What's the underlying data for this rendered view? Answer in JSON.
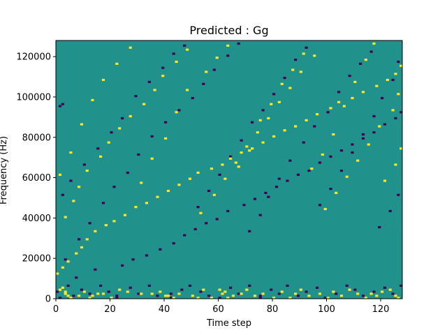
{
  "chart_data": {
    "type": "heatmap",
    "title": "Predicted : Gg",
    "xlabel": "Time step",
    "ylabel": "Frequency (Hz)",
    "xlim": [
      0,
      128
    ],
    "ylim": [
      0,
      128000
    ],
    "x_ticks": [
      0,
      20,
      40,
      60,
      80,
      100,
      120
    ],
    "y_ticks": [
      0,
      20000,
      40000,
      60000,
      80000,
      100000,
      120000
    ],
    "rows": 128,
    "background_value": 0,
    "value_levels": [
      -1,
      0,
      1
    ],
    "colors": {
      "-1": "#440154",
      "0": "#21918c",
      "1": "#fde725"
    },
    "cells_high": [
      [
        1,
        4
      ],
      [
        2,
        5
      ],
      [
        3,
        2
      ],
      [
        3,
        3
      ],
      [
        4,
        1
      ],
      [
        5,
        0
      ],
      [
        8,
        1
      ],
      [
        10,
        3
      ],
      [
        12,
        0
      ],
      [
        13,
        1
      ],
      [
        15,
        2
      ],
      [
        17,
        2
      ],
      [
        20,
        0
      ],
      [
        23,
        4
      ],
      [
        26,
        3
      ],
      [
        31,
        2
      ],
      [
        35,
        2
      ],
      [
        38,
        3
      ],
      [
        40,
        1
      ],
      [
        41,
        1
      ],
      [
        43,
        0
      ],
      [
        45,
        2
      ],
      [
        50,
        1
      ],
      [
        52,
        0
      ],
      [
        54,
        4
      ],
      [
        57,
        0
      ],
      [
        60,
        4
      ],
      [
        61,
        2
      ],
      [
        62,
        3
      ],
      [
        63,
        0
      ],
      [
        65,
        1
      ],
      [
        68,
        2
      ],
      [
        70,
        4
      ],
      [
        73,
        1
      ],
      [
        76,
        2
      ],
      [
        80,
        0
      ],
      [
        83,
        3
      ],
      [
        86,
        0
      ],
      [
        88,
        2
      ],
      [
        90,
        4
      ],
      [
        93,
        1
      ],
      [
        97,
        2
      ],
      [
        100,
        0
      ],
      [
        102,
        3
      ],
      [
        105,
        1
      ],
      [
        108,
        4
      ],
      [
        111,
        2
      ],
      [
        114,
        0
      ],
      [
        116,
        2
      ],
      [
        118,
        1
      ],
      [
        120,
        3
      ],
      [
        123,
        4
      ],
      [
        125,
        1
      ],
      [
        126,
        0
      ],
      [
        0,
        12
      ],
      [
        2,
        15
      ],
      [
        4,
        18
      ],
      [
        7,
        22
      ],
      [
        9,
        25
      ],
      [
        11,
        29
      ],
      [
        14,
        33
      ],
      [
        18,
        36
      ],
      [
        21,
        38
      ],
      [
        25,
        41
      ],
      [
        29,
        45
      ],
      [
        33,
        47
      ],
      [
        37,
        50
      ],
      [
        41,
        53
      ],
      [
        45,
        56
      ],
      [
        49,
        59
      ],
      [
        52,
        62
      ],
      [
        57,
        64
      ],
      [
        61,
        66
      ],
      [
        64,
        69
      ],
      [
        68,
        72
      ],
      [
        72,
        74
      ],
      [
        76,
        77
      ],
      [
        80,
        80
      ],
      [
        84,
        83
      ],
      [
        88,
        85
      ],
      [
        92,
        88
      ],
      [
        96,
        91
      ],
      [
        101,
        94
      ],
      [
        104,
        97
      ],
      [
        109,
        99
      ],
      [
        113,
        102
      ],
      [
        118,
        105
      ],
      [
        122,
        108
      ],
      [
        125,
        111
      ],
      [
        127,
        115
      ],
      [
        3,
        40
      ],
      [
        6,
        48
      ],
      [
        8,
        55
      ],
      [
        11,
        63
      ],
      [
        16,
        70
      ],
      [
        19,
        77
      ],
      [
        23,
        84
      ],
      [
        27,
        90
      ],
      [
        32,
        96
      ],
      [
        36,
        103
      ],
      [
        39,
        110
      ],
      [
        44,
        117
      ],
      [
        48,
        123
      ],
      [
        53,
        42
      ],
      [
        58,
        51
      ],
      [
        62,
        59
      ],
      [
        66,
        67
      ],
      [
        70,
        75
      ],
      [
        74,
        82
      ],
      [
        78,
        89
      ],
      [
        82,
        97
      ],
      [
        86,
        104
      ],
      [
        90,
        112
      ],
      [
        95,
        120
      ],
      [
        99,
        44
      ],
      [
        103,
        52
      ],
      [
        107,
        60
      ],
      [
        111,
        68
      ],
      [
        115,
        76
      ],
      [
        119,
        85
      ],
      [
        124,
        93
      ],
      [
        126,
        101
      ],
      [
        1,
        61
      ],
      [
        5,
        72
      ],
      [
        9,
        86
      ],
      [
        13,
        98
      ],
      [
        17,
        108
      ],
      [
        22,
        116
      ],
      [
        27,
        124
      ],
      [
        31,
        57
      ],
      [
        35,
        69
      ],
      [
        40,
        79
      ],
      [
        44,
        92
      ],
      [
        48,
        103
      ],
      [
        55,
        112
      ],
      [
        59,
        119
      ],
      [
        63,
        125
      ],
      [
        67,
        65
      ],
      [
        71,
        73
      ],
      [
        75,
        88
      ],
      [
        79,
        96
      ],
      [
        83,
        106
      ],
      [
        87,
        113
      ],
      [
        91,
        121
      ],
      [
        94,
        64
      ],
      [
        98,
        71
      ],
      [
        102,
        81
      ],
      [
        106,
        95
      ],
      [
        110,
        107
      ],
      [
        114,
        118
      ],
      [
        117,
        126
      ],
      [
        121,
        58
      ],
      [
        125,
        66
      ],
      [
        127,
        74
      ]
    ],
    "cells_low": [
      [
        0,
        3
      ],
      [
        1,
        0
      ],
      [
        4,
        6
      ],
      [
        6,
        1
      ],
      [
        9,
        4
      ],
      [
        12,
        2
      ],
      [
        16,
        6
      ],
      [
        19,
        3
      ],
      [
        22,
        0
      ],
      [
        22,
        1
      ],
      [
        27,
        5
      ],
      [
        30,
        2
      ],
      [
        34,
        6
      ],
      [
        37,
        1
      ],
      [
        42,
        0
      ],
      [
        42,
        2
      ],
      [
        46,
        4
      ],
      [
        49,
        6
      ],
      [
        53,
        3
      ],
      [
        56,
        1
      ],
      [
        60,
        0
      ],
      [
        64,
        5
      ],
      [
        67,
        2
      ],
      [
        71,
        6
      ],
      [
        75,
        0
      ],
      [
        75,
        1
      ],
      [
        79,
        4
      ],
      [
        82,
        2
      ],
      [
        85,
        6
      ],
      [
        89,
        1
      ],
      [
        92,
        3
      ],
      [
        96,
        5
      ],
      [
        99,
        0
      ],
      [
        103,
        2
      ],
      [
        107,
        6
      ],
      [
        110,
        4
      ],
      [
        113,
        1
      ],
      [
        117,
        3
      ],
      [
        121,
        5
      ],
      [
        124,
        2
      ],
      [
        127,
        6
      ],
      [
        1,
        95
      ],
      [
        2,
        96
      ],
      [
        7,
        10
      ],
      [
        14,
        14
      ],
      [
        24,
        16
      ],
      [
        28,
        19
      ],
      [
        33,
        21
      ],
      [
        38,
        24
      ],
      [
        43,
        27
      ],
      [
        47,
        31
      ],
      [
        51,
        34
      ],
      [
        55,
        37
      ],
      [
        59,
        39
      ],
      [
        63,
        43
      ],
      [
        69,
        46
      ],
      [
        73,
        49
      ],
      [
        77,
        52
      ],
      [
        81,
        55
      ],
      [
        85,
        58
      ],
      [
        89,
        61
      ],
      [
        93,
        63
      ],
      [
        97,
        67
      ],
      [
        101,
        70
      ],
      [
        105,
        73
      ],
      [
        109,
        76
      ],
      [
        113,
        79
      ],
      [
        117,
        82
      ],
      [
        121,
        86
      ],
      [
        125,
        89
      ],
      [
        127,
        92
      ],
      [
        2,
        51
      ],
      [
        5,
        58
      ],
      [
        10,
        66
      ],
      [
        15,
        74
      ],
      [
        20,
        82
      ],
      [
        24,
        89
      ],
      [
        29,
        100
      ],
      [
        34,
        107
      ],
      [
        39,
        114
      ],
      [
        43,
        121
      ],
      [
        47,
        125
      ],
      [
        52,
        45
      ],
      [
        56,
        53
      ],
      [
        60,
        61
      ],
      [
        64,
        70
      ],
      [
        68,
        78
      ],
      [
        72,
        87
      ],
      [
        76,
        93
      ],
      [
        80,
        101
      ],
      [
        84,
        109
      ],
      [
        88,
        118
      ],
      [
        92,
        124
      ],
      [
        97,
        46
      ],
      [
        101,
        54
      ],
      [
        105,
        63
      ],
      [
        109,
        72
      ],
      [
        113,
        81
      ],
      [
        117,
        90
      ],
      [
        120,
        99
      ],
      [
        124,
        108
      ],
      [
        126,
        117
      ],
      [
        3,
        19
      ],
      [
        8,
        29
      ],
      [
        12,
        37
      ],
      [
        17,
        47
      ],
      [
        21,
        55
      ],
      [
        26,
        62
      ],
      [
        30,
        71
      ],
      [
        35,
        80
      ],
      [
        40,
        87
      ],
      [
        45,
        93
      ],
      [
        50,
        99
      ],
      [
        54,
        106
      ],
      [
        58,
        113
      ],
      [
        63,
        120
      ],
      [
        67,
        126
      ],
      [
        71,
        33
      ],
      [
        75,
        41
      ],
      [
        78,
        50
      ],
      [
        82,
        59
      ],
      [
        86,
        68
      ],
      [
        91,
        77
      ],
      [
        95,
        85
      ],
      [
        100,
        92
      ],
      [
        104,
        102
      ],
      [
        108,
        110
      ],
      [
        112,
        116
      ],
      [
        116,
        122
      ],
      [
        119,
        35
      ],
      [
        123,
        43
      ],
      [
        126,
        51
      ]
    ]
  }
}
